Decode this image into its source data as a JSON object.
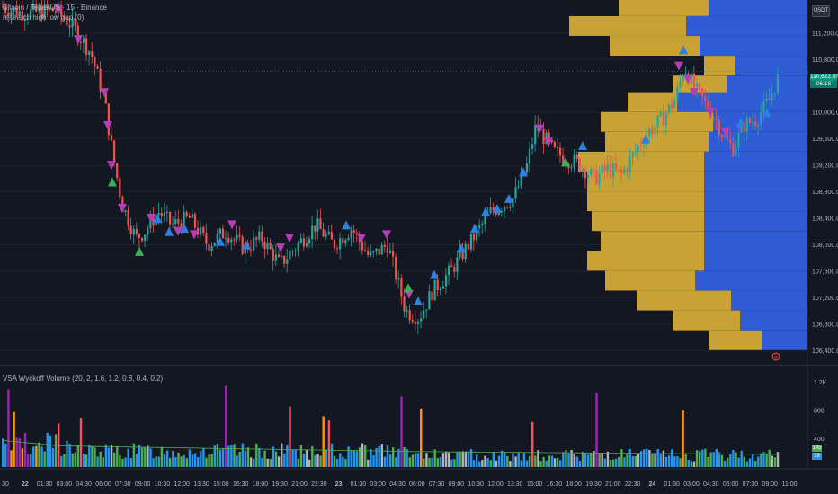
{
  "header": {
    "symbol_title": "Bitcoin / TetherUS · 15 · Binance",
    "indicator_1": "research high low gap (0)",
    "indicator_2": "VSA Wyckoff Volume (20, 2, 1.6, 1.2, 0.8, 0.4, 0.2)"
  },
  "currency_badge": "USDT",
  "price_axis": {
    "labels": [
      "111,200.00",
      "110,800.00",
      "110,000.00",
      "109,600.00",
      "109,200.00",
      "108,800.00",
      "108,400.00",
      "108,000.00",
      "107,600.00",
      "107,200.00",
      "106,800.00",
      "106,400.00"
    ],
    "last_price": "110,622.57",
    "countdown": "06:18"
  },
  "volume_axis": {
    "labels": [
      "1.2K",
      "800",
      "400"
    ],
    "tag_green": "145",
    "tag_blue": "78"
  },
  "time_axis": {
    "labels": [
      "30",
      "22",
      "01:30",
      "03:00",
      "04:30",
      "06:00",
      "07:30",
      "09:00",
      "10:30",
      "12:00",
      "13:30",
      "15:00",
      "16:30",
      "18:00",
      "19:30",
      "21:00",
      "22:30",
      "23",
      "01:30",
      "03:00",
      "04:30",
      "06:00",
      "07:30",
      "09:00",
      "10:30",
      "12:00",
      "13:30",
      "15:00",
      "16:30",
      "18:00",
      "19:30",
      "21:00",
      "22:30",
      "24",
      "01:30",
      "03:00",
      "04:30",
      "06:00",
      "07:30",
      "09:00",
      "11:00"
    ]
  },
  "colors": {
    "background": "#131722",
    "up_candle": "#26a69a",
    "down_candle": "#ef5350",
    "profile_gold": "#c9a235",
    "profile_blue": "#2f5bd4",
    "triangle_down": "#b33fb3",
    "triangle_up_blue": "#2f7fe0",
    "triangle_up_green": "#3dae5a",
    "vol_blue": "#2196f3",
    "vol_green": "#4caf50",
    "vol_purple": "#9c27b0",
    "vol_orange": "#ff9800",
    "vol_red": "#f7525f",
    "vol_gray": "#b2b5be",
    "ma_line": "#4caf50"
  },
  "chart_data": {
    "type": "candlestick",
    "price_range": [
      106200,
      111700
    ],
    "volume_range": [
      0,
      1400
    ],
    "profile_rows": [
      {
        "price": 111600,
        "buy": 100,
        "sell": 110
      },
      {
        "price": 111300,
        "buy": 130,
        "sell": 135
      },
      {
        "price": 111000,
        "buy": 100,
        "sell": 120
      },
      {
        "price": 110700,
        "buy": 35,
        "sell": 80
      },
      {
        "price": 110400,
        "buy": 60,
        "sell": 90
      },
      {
        "price": 110150,
        "buy": 55,
        "sell": 145
      },
      {
        "price": 109850,
        "buy": 125,
        "sell": 105
      },
      {
        "price": 109550,
        "buy": 115,
        "sell": 110
      },
      {
        "price": 109250,
        "buy": 140,
        "sell": 115
      },
      {
        "price": 108950,
        "buy": 130,
        "sell": 115
      },
      {
        "price": 108650,
        "buy": 130,
        "sell": 115
      },
      {
        "price": 108350,
        "buy": 125,
        "sell": 115
      },
      {
        "price": 108050,
        "buy": 115,
        "sell": 115
      },
      {
        "price": 107750,
        "buy": 130,
        "sell": 115
      },
      {
        "price": 107450,
        "buy": 100,
        "sell": 125
      },
      {
        "price": 107150,
        "buy": 105,
        "sell": 85
      },
      {
        "price": 106850,
        "buy": 75,
        "sell": 75
      },
      {
        "price": 106550,
        "buy": 60,
        "sell": 50
      }
    ]
  }
}
